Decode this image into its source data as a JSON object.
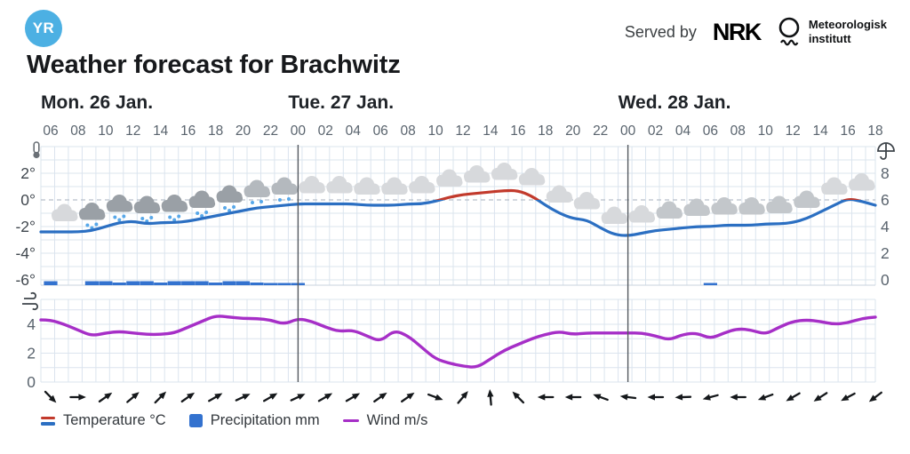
{
  "header": {
    "logo_text": "YR",
    "served_by": "Served by",
    "nrk_label": "NRK",
    "met_label_line1": "Meteorologisk",
    "met_label_line2": "institutt"
  },
  "title": "Weather forecast for Brachwitz",
  "legend": {
    "temperature": "Temperature °C",
    "precipitation": "Precipitation mm",
    "wind": "Wind m/s"
  },
  "colors": {
    "logo_blue": "#4cb0e3",
    "temperature_blue": "#2b6fc2",
    "temperature_red": "#c23a2c",
    "precipitation_blue": "#3372cf",
    "wind_purple": "#a62fc7",
    "snow_dot_blue": "#58a8e9",
    "grid": "#dbe4ee",
    "zero_line": "#b6bfc9",
    "day_separator": "#54595f",
    "axis_text_dark": "#40474e",
    "axis_text_gray": "#5a646e",
    "day_label": "#1f2328",
    "arrow_black": "#15181b"
  },
  "chart_data": {
    "type": "line",
    "title": "Weather forecast for Brachwitz",
    "x_start": "Mon 06:00",
    "x_step_hours": 1,
    "days": [
      {
        "label": "Mon. 26 Jan.",
        "hour_index": 0
      },
      {
        "label": "Tue. 27 Jan.",
        "hour_index": 18
      },
      {
        "label": "Wed. 28 Jan.",
        "hour_index": 42
      }
    ],
    "hour_tick_labels": [
      "06",
      "08",
      "10",
      "12",
      "14",
      "16",
      "18",
      "20",
      "22",
      "00",
      "02",
      "04",
      "06",
      "08",
      "10",
      "12",
      "14",
      "16",
      "18",
      "20",
      "22",
      "00",
      "02",
      "04",
      "06",
      "08",
      "10",
      "12",
      "14",
      "16",
      "18"
    ],
    "temp_axis_ticks": [
      "2°",
      "0°",
      "-2°",
      "-4°",
      "-6°"
    ],
    "temp_axis_values": [
      2,
      0,
      -2,
      -4,
      -6
    ],
    "precip_axis_ticks": [
      "8",
      "6",
      "4",
      "2",
      "0"
    ],
    "precip_axis_values": [
      8,
      6,
      4,
      2,
      0
    ],
    "wind_axis_ticks": [
      "4",
      "2",
      "0"
    ],
    "wind_axis_values": [
      4,
      2,
      0
    ],
    "series": [
      {
        "name": "temperature_c",
        "values": [
          -2.4,
          -2.4,
          -2.4,
          -2.3,
          -2.0,
          -1.7,
          -1.6,
          -1.8,
          -1.7,
          -1.7,
          -1.6,
          -1.4,
          -1.2,
          -1.0,
          -0.8,
          -0.6,
          -0.5,
          -0.4,
          -0.3,
          -0.3,
          -0.3,
          -0.3,
          -0.3,
          -0.4,
          -0.4,
          -0.4,
          -0.3,
          -0.3,
          -0.1,
          0.2,
          0.4,
          0.5,
          0.6,
          0.7,
          0.7,
          0.3,
          -0.4,
          -1.0,
          -1.4,
          -1.5,
          -2.1,
          -2.6,
          -2.7,
          -2.5,
          -2.3,
          -2.2,
          -2.1,
          -2.0,
          -2.0,
          -1.9,
          -1.9,
          -1.9,
          -1.8,
          -1.8,
          -1.7,
          -1.4,
          -0.9,
          -0.4,
          0.1,
          -0.1,
          -0.4
        ]
      },
      {
        "name": "precipitation_mm",
        "values": [
          0.3,
          0,
          0,
          0.3,
          0.3,
          0.2,
          0.3,
          0.3,
          0.2,
          0.3,
          0.3,
          0.3,
          0.2,
          0.3,
          0.3,
          0.2,
          0.1,
          0.1,
          0.1,
          0,
          0,
          0,
          0,
          0,
          0,
          0,
          0,
          0,
          0,
          0,
          0,
          0,
          0,
          0,
          0,
          0,
          0,
          0,
          0,
          0,
          0,
          0,
          0,
          0,
          0,
          0,
          0,
          0,
          0.1,
          0,
          0,
          0,
          0,
          0,
          0,
          0,
          0,
          0,
          0,
          0,
          0
        ]
      },
      {
        "name": "wind_ms",
        "values": [
          4.3,
          4.0,
          3.6,
          3.2,
          3.4,
          3.5,
          3.4,
          3.3,
          3.3,
          3.4,
          3.8,
          4.2,
          4.6,
          4.5,
          4.4,
          4.4,
          4.3,
          4.0,
          4.4,
          4.2,
          3.8,
          3.5,
          3.6,
          3.2,
          2.8,
          3.6,
          3.2,
          2.4,
          1.6,
          1.3,
          1.1,
          1.0,
          1.6,
          2.2,
          2.6,
          3.0,
          3.3,
          3.5,
          3.3,
          3.4,
          3.4,
          3.4,
          3.4,
          3.4,
          3.2,
          2.9,
          3.3,
          3.4,
          3.0,
          3.4,
          3.7,
          3.6,
          3.3,
          3.8,
          4.2,
          4.3,
          4.2,
          4.0,
          4.1,
          4.4,
          4.5
        ]
      }
    ],
    "wind_direction_deg": [
      45,
      0,
      -35,
      -40,
      -45,
      -35,
      -30,
      -25,
      -30,
      -25,
      -30,
      -30,
      -35,
      -35,
      20,
      -50,
      -95,
      -135,
      180,
      180,
      -160,
      -173,
      180,
      178,
      165,
      180,
      160,
      150,
      147,
      152,
      143
    ],
    "weather_icons": [
      {
        "hour": 1,
        "type": "cloudy"
      },
      {
        "hour": 3,
        "type": "snow"
      },
      {
        "hour": 5,
        "type": "snow"
      },
      {
        "hour": 7,
        "type": "snow"
      },
      {
        "hour": 9,
        "type": "snow"
      },
      {
        "hour": 11,
        "type": "snow"
      },
      {
        "hour": 13,
        "type": "snow"
      },
      {
        "hour": 15,
        "type": "snow-light"
      },
      {
        "hour": 17,
        "type": "snow-light"
      },
      {
        "hour": 19,
        "type": "cloudy"
      },
      {
        "hour": 21,
        "type": "cloudy"
      },
      {
        "hour": 23,
        "type": "cloudy"
      },
      {
        "hour": 25,
        "type": "cloudy"
      },
      {
        "hour": 27,
        "type": "cloudy"
      },
      {
        "hour": 29,
        "type": "cloudy"
      },
      {
        "hour": 31,
        "type": "cloudy"
      },
      {
        "hour": 33,
        "type": "cloudy"
      },
      {
        "hour": 35,
        "type": "cloudy"
      },
      {
        "hour": 37,
        "type": "cloudy"
      },
      {
        "hour": 39,
        "type": "cloudy"
      },
      {
        "hour": 41,
        "type": "cloudy"
      },
      {
        "hour": 43,
        "type": "cloudy"
      },
      {
        "hour": 45,
        "type": "cloudy-med"
      },
      {
        "hour": 47,
        "type": "cloudy-med"
      },
      {
        "hour": 49,
        "type": "cloudy-med"
      },
      {
        "hour": 51,
        "type": "cloudy-med"
      },
      {
        "hour": 53,
        "type": "cloudy-med"
      },
      {
        "hour": 55,
        "type": "cloudy-med"
      },
      {
        "hour": 57,
        "type": "cloudy"
      },
      {
        "hour": 59,
        "type": "cloudy"
      }
    ],
    "temp_ylim": [
      -6,
      4
    ],
    "precip_ylim": [
      0,
      8
    ],
    "wind_ylim": [
      0,
      5
    ],
    "grid": true,
    "legend_position": "bottom"
  }
}
